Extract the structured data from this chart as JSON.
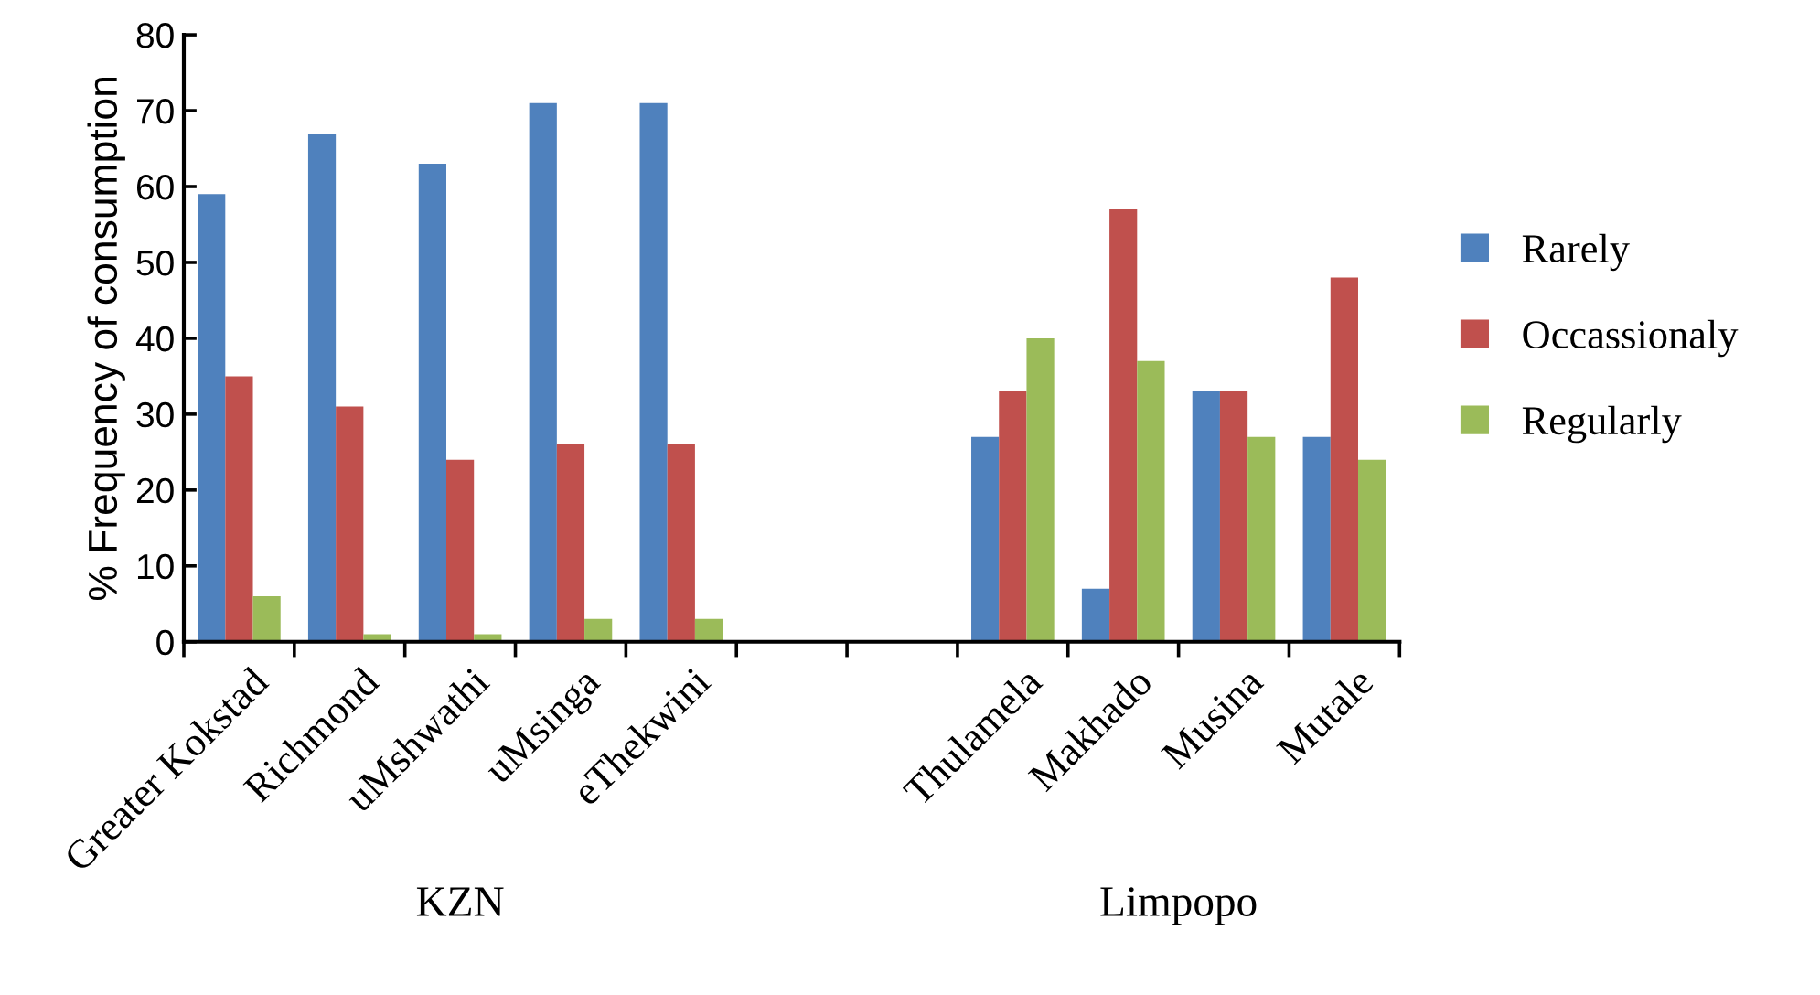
{
  "chart_data": {
    "type": "bar",
    "ylabel": "% Frequency of consumption",
    "categories": [
      "Greater Kokstad",
      "Richmond",
      "uMshwathi",
      "uMsinga",
      "eThekwini",
      null,
      null,
      "Thulamela",
      "Makhado",
      "Musina",
      "Mutale"
    ],
    "series": [
      {
        "name": "Rarely",
        "color": "#4f81bd",
        "values": [
          59,
          67,
          63,
          71,
          71,
          null,
          null,
          27,
          7,
          33,
          27
        ]
      },
      {
        "name": "Occassionaly",
        "color": "#c0504d",
        "values": [
          35,
          31,
          24,
          26,
          26,
          null,
          null,
          33,
          57,
          33,
          48
        ]
      },
      {
        "name": "Regularly",
        "color": "#9bbb59",
        "values": [
          6,
          1,
          1,
          3,
          3,
          null,
          null,
          40,
          37,
          27,
          24
        ]
      }
    ],
    "ylim": [
      0,
      80
    ],
    "yticks": [
      0,
      10,
      20,
      30,
      40,
      50,
      60,
      70,
      80
    ],
    "grid": false,
    "legend": "right",
    "annotations": [
      "KZN",
      "Limpopo"
    ]
  }
}
